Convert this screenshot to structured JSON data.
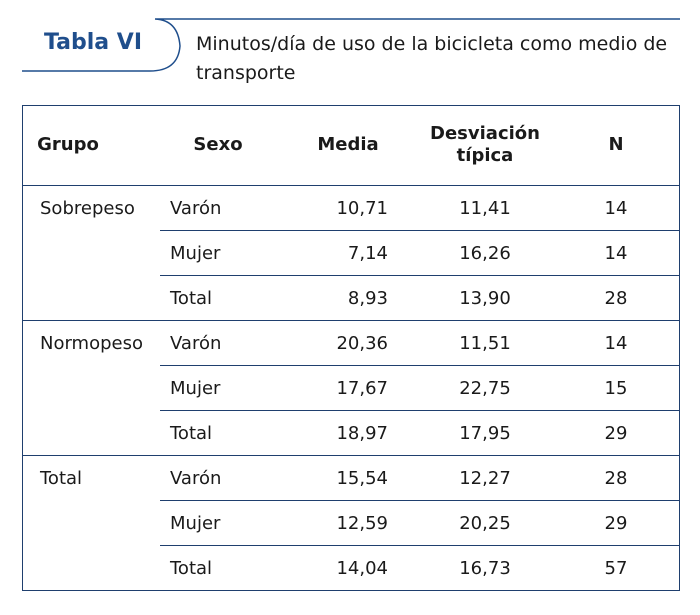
{
  "header": {
    "label": "Tabla VI",
    "title": "Minutos/día de uso de la bicicleta como medio de transporte"
  },
  "table": {
    "columns": [
      "Grupo",
      "Sexo",
      "Media",
      "Desviación típica",
      "N"
    ],
    "groups": [
      {
        "name": "Sobrepeso",
        "rows": [
          [
            "Varón",
            "10,71",
            "11,41",
            "14"
          ],
          [
            "Mujer",
            "7,14",
            "16,26",
            "14"
          ],
          [
            "Total",
            "8,93",
            "13,90",
            "28"
          ]
        ]
      },
      {
        "name": "Normopeso",
        "rows": [
          [
            "Varón",
            "20,36",
            "11,51",
            "14"
          ],
          [
            "Mujer",
            "17,67",
            "22,75",
            "15"
          ],
          [
            "Total",
            "18,97",
            "17,95",
            "29"
          ]
        ]
      },
      {
        "name": "Total",
        "rows": [
          [
            "Varón",
            "15,54",
            "12,27",
            "28"
          ],
          [
            "Mujer",
            "12,59",
            "20,25",
            "29"
          ],
          [
            "Total",
            "14,04",
            "16,73",
            "57"
          ]
        ]
      }
    ]
  }
}
